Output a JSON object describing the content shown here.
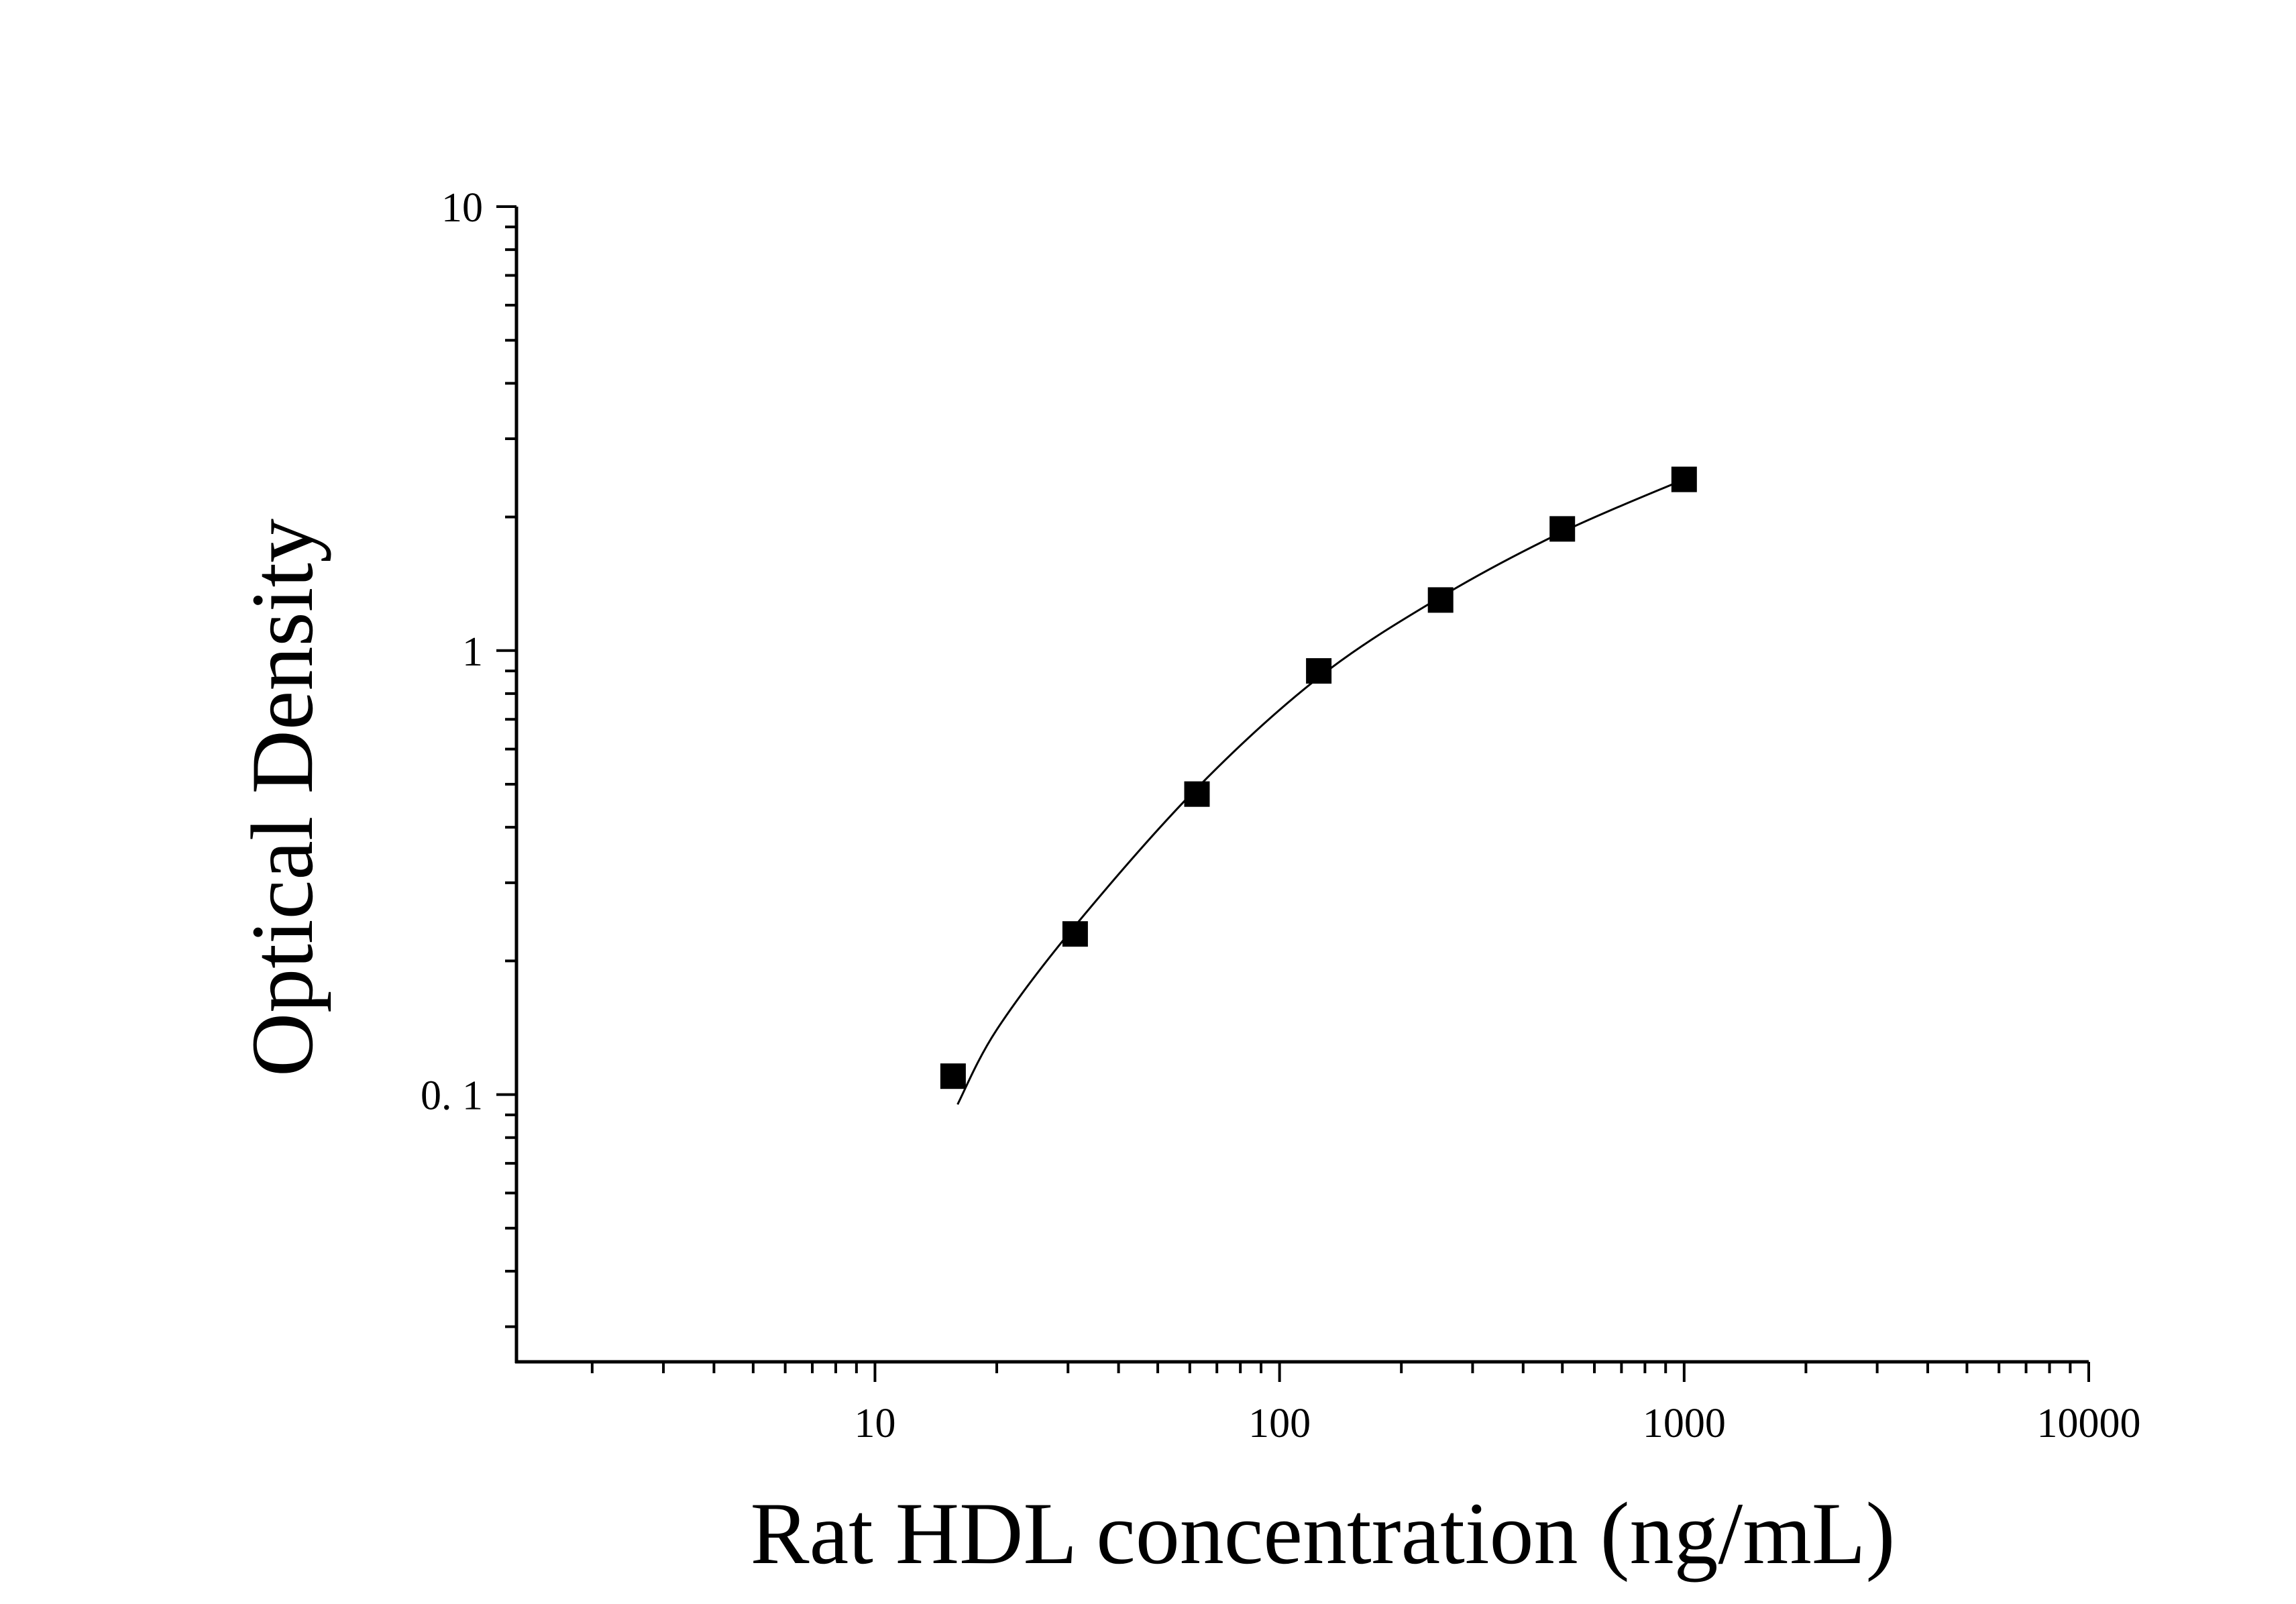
{
  "chart_data": {
    "type": "scatter",
    "xlabel": "Rat HDL concentration (ng/mL)",
    "ylabel": "Optical Density",
    "x_scale": "log",
    "y_scale": "log",
    "xlim": [
      1.3,
      10000
    ],
    "ylim": [
      0.025,
      10
    ],
    "x_ticks": [
      {
        "value": 10,
        "label": "10"
      },
      {
        "value": 100,
        "label": "100"
      },
      {
        "value": 1000,
        "label": "1000"
      },
      {
        "value": 10000,
        "label": "10000"
      }
    ],
    "y_ticks": [
      {
        "value": 0.1,
        "label": "0. 1"
      },
      {
        "value": 1,
        "label": "1"
      },
      {
        "value": 10,
        "label": "10"
      }
    ],
    "grid": false,
    "series": [
      {
        "kind": "points",
        "marker": "square",
        "color": "#000000",
        "x": [
          15.6,
          31.25,
          62.5,
          125,
          250,
          500,
          1000
        ],
        "y": [
          0.11,
          0.23,
          0.475,
          0.9,
          1.3,
          1.88,
          2.43
        ]
      },
      {
        "kind": "fit-curve",
        "color": "#000000",
        "x": [
          16,
          20,
          31.25,
          62.5,
          125,
          250,
          500,
          1000
        ],
        "y": [
          0.095,
          0.14,
          0.24,
          0.49,
          0.87,
          1.32,
          1.85,
          2.43
        ]
      }
    ]
  }
}
